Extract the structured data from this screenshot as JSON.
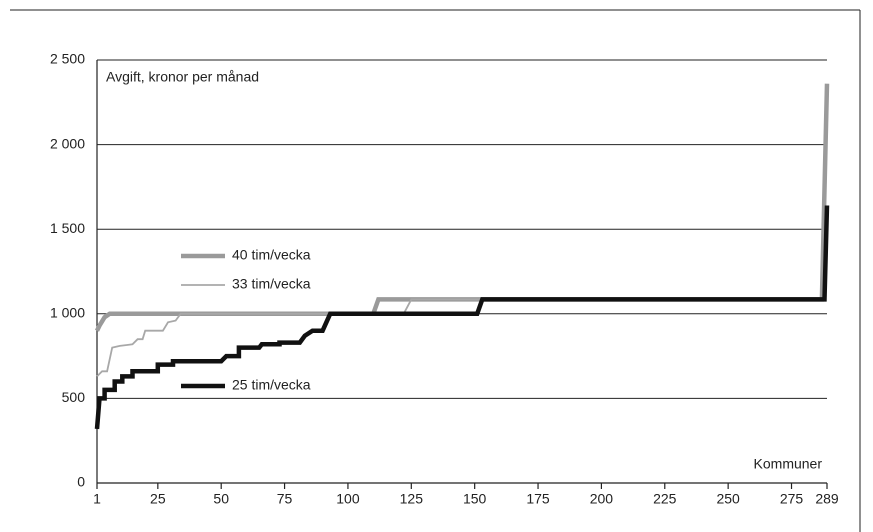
{
  "chart_data": {
    "type": "line",
    "y_label": "Avgift, kronor per månad",
    "x_label": "Kommuner",
    "xlim": [
      1,
      289
    ],
    "xticks": [
      1,
      25,
      50,
      75,
      100,
      125,
      150,
      175,
      200,
      225,
      250,
      275,
      289
    ],
    "ylim": [
      0,
      2500
    ],
    "yticks": [
      0,
      500,
      {
        "value": 1000,
        "label": "1 000"
      },
      {
        "value": 1500,
        "label": "1 500"
      },
      {
        "value": 2000,
        "label": "2 000"
      },
      {
        "value": 2500,
        "label": "2 500"
      }
    ],
    "grid": true,
    "series": [
      {
        "name": "40 tim/vecka",
        "color": "#9a9a9a",
        "x": [
          1,
          2,
          4,
          6,
          110,
          112,
          287,
          289
        ],
        "values": [
          900,
          930,
          980,
          1000,
          1000,
          1085,
          1085,
          2360
        ]
      },
      {
        "name": "33 tim/vecka",
        "color": "#a8a8a8",
        "x": [
          1,
          3,
          5,
          7,
          10,
          15,
          17,
          19,
          20,
          27,
          29,
          32,
          34,
          122,
          125,
          288
        ],
        "values": [
          630,
          660,
          660,
          800,
          810,
          820,
          850,
          850,
          900,
          900,
          950,
          960,
          1000,
          1000,
          1085,
          1085
        ]
      },
      {
        "name": "25 tim/vecka",
        "color": "#111111",
        "x": [
          1,
          2,
          4,
          4,
          8,
          8,
          11,
          11,
          15,
          15,
          25,
          25,
          31,
          31,
          50,
          52,
          57,
          57,
          65,
          66,
          73,
          73,
          81,
          83,
          86,
          90,
          93,
          151,
          153,
          288,
          289
        ],
        "values": [
          320,
          500,
          500,
          550,
          550,
          600,
          600,
          630,
          630,
          660,
          660,
          700,
          700,
          720,
          720,
          750,
          750,
          800,
          800,
          820,
          820,
          830,
          830,
          870,
          900,
          900,
          1000,
          1000,
          1085,
          1085,
          1640
        ]
      }
    ]
  }
}
